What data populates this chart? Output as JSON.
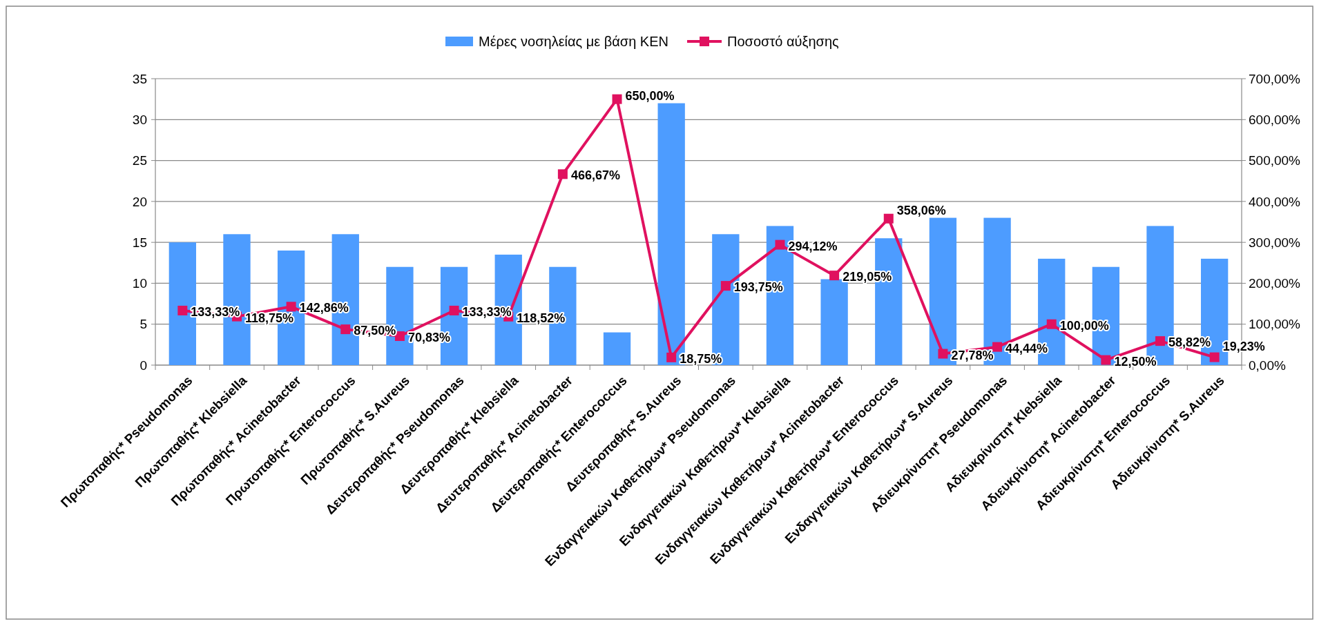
{
  "chart_data": {
    "type": "bar",
    "categories": [
      "Πρωτοπαθής* Pseudomonas",
      "Πρωτοπαθής* Klebsiella",
      "Πρωτοπαθής* Acinetobacter",
      "Πρωτοπαθής* Enterococcus",
      "Πρωτοπαθής* S.Aureus",
      "Δευτεροπαθής* Pseudomonas",
      "Δευτεροπαθής* Klebsiella",
      "Δευτεροπαθής* Acinetobacter",
      "Δευτεροπαθής* Enterococcus",
      "Δευτεροπαθής* S.Aureus",
      "Ενδαγγειακών Καθετήρων* Pseudomonas",
      "Ενδαγγειακών Καθετήρων* Klebsiella",
      "Ενδαγγειακών Καθετήρων* Acinetobacter",
      "Ενδαγγειακών Καθετήρων* Enterococcus",
      "Ενδαγγειακών Καθετήρων* S.Aureus",
      "Αδιευκρίνιστη* Pseudomonas",
      "Αδιευκρίνιστη* Klebsiella",
      "Αδιευκρίνιστη* Acinetobacter",
      "Αδιευκρίνιστη* Enterococcus",
      "Αδιευκρίνιστη* S.Aureus"
    ],
    "series": [
      {
        "name": "Μέρες νοσηλείας με βάση ΚΕΝ",
        "color": "#4d9cff",
        "values": [
          15,
          16,
          14,
          16,
          12,
          12,
          13.5,
          12,
          4,
          32,
          16,
          17,
          10.5,
          15.5,
          18,
          18,
          13,
          12,
          17,
          13
        ]
      },
      {
        "name": "Ποσοστό αύξησης",
        "type": "line",
        "axis": "y2",
        "color": "#e0115f",
        "values": [
          133.33,
          118.75,
          142.86,
          87.5,
          70.83,
          133.33,
          118.52,
          466.67,
          650,
          18.75,
          193.75,
          294.12,
          219.05,
          358.06,
          27.78,
          44.44,
          100,
          12.5,
          58.82,
          19.23
        ],
        "value_labels": [
          "133,33%",
          "118,75%",
          "142,86%",
          "87,50%",
          "70,83%",
          "133,33%",
          "118,52%",
          "466,67%",
          "650,00%",
          "18,75%",
          "193,75%",
          "294,12%",
          "219,05%",
          "358,06%",
          "27,78%",
          "44,44%",
          "100,00%",
          "12,50%",
          "58,82%",
          "19,23%"
        ]
      }
    ],
    "ylim": [
      0,
      35
    ],
    "yticks": [
      0,
      5,
      10,
      15,
      20,
      25,
      30,
      35
    ],
    "y2lim": [
      0,
      700
    ],
    "y2ticks": [
      {
        "value": 0,
        "label": "0,00%"
      },
      {
        "value": 100,
        "label": "100,00%"
      },
      {
        "value": 200,
        "label": "200,00%"
      },
      {
        "value": 300,
        "label": "300,00%"
      },
      {
        "value": 400,
        "label": "400,00%"
      },
      {
        "value": 500,
        "label": "500,00%"
      },
      {
        "value": 600,
        "label": "600,00%"
      },
      {
        "value": 700,
        "label": "700,00%"
      }
    ],
    "grid": "y",
    "legend": "top",
    "marker": "square"
  }
}
